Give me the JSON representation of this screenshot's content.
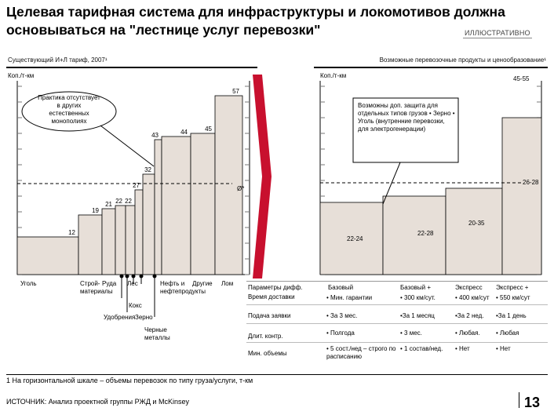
{
  "title": "Целевая тарифная система для инфраструктуры и локомотивов должна основываться на \"лестнице услуг перевозки\"",
  "badge": "ИЛЛЮСТРАТИВНО",
  "chart_data": [
    {
      "type": "bar",
      "title": "Существующий И+Л тариф, 2007¹",
      "ylabel": "Коп./т-км",
      "categories": [
        "Уголь",
        "Строй-материалы",
        "Руда",
        "Лес",
        "Кокс",
        "Удобрения",
        "Зерно",
        "Нефть и нефтепродукты",
        "Черные металлы",
        "Другие",
        "Лом"
      ],
      "values": [
        12,
        19,
        21,
        22,
        22,
        27,
        32,
        43,
        44,
        45,
        57
      ],
      "value_labels": [
        "12",
        "19",
        "21",
        "22",
        "22",
        "27",
        "32",
        "43",
        "44",
        "45",
        "57"
      ],
      "average_label": "Ø*",
      "average_value": 26,
      "annotation": "Практика отсутствует в других естественных монополиях",
      "ylim": [
        0,
        60
      ]
    },
    {
      "type": "bar",
      "title": "Возможные перевозочные продукты и ценообразование¹",
      "ylabel": "Коп./т-км",
      "categories": [
        "Базовый",
        "Базовый +",
        "Экспресс",
        "Экспресс +"
      ],
      "value_labels": [
        "22-24",
        "22-28",
        "20-35",
        "45-55"
      ],
      "values": [
        23,
        25,
        27.5,
        50
      ],
      "average_label": "26-28",
      "average_value": 27,
      "annotation": "Возможны доп. защита для отдельных типов грузов • Зерно • Уголь (внутренние перевозки, для электрогенерации)",
      "ylim": [
        0,
        60
      ]
    }
  ],
  "table": {
    "header": [
      "Параметры дифф.",
      "Базовый",
      "Базовый +",
      "Экспресс",
      "Экспресс +"
    ],
    "rows": [
      [
        "Время доставки",
        "• Мин. гарантии",
        "• 300 км/сут.",
        "• 400 км/сут",
        "• 550 км/сут"
      ],
      [
        "Подача заявки",
        "• За 3 мес.",
        "•За 1 месяц",
        "•За 2 нед.",
        "•За 1 день"
      ],
      [
        "Длит. контр.",
        "• Полгода",
        "• 3 мес.",
        "• Любая.",
        "• Любая"
      ],
      [
        "Мин. объемы",
        "• 5 сост./нед – строго по расписанию",
        "• 1 состав/нед.",
        "• Нет",
        "• Нет"
      ]
    ]
  },
  "footnote": "1 На горизонтальной шкале – объемы перевозок по типу груза/услуги, т-км",
  "source": "ИСТОЧНИК: Анализ проектной группы РЖД и McKinsey",
  "page_number": "13",
  "colors": {
    "bar_fill": "#e7dfd8",
    "arrow_red": "#c8102e",
    "axis_black": "#000000"
  }
}
